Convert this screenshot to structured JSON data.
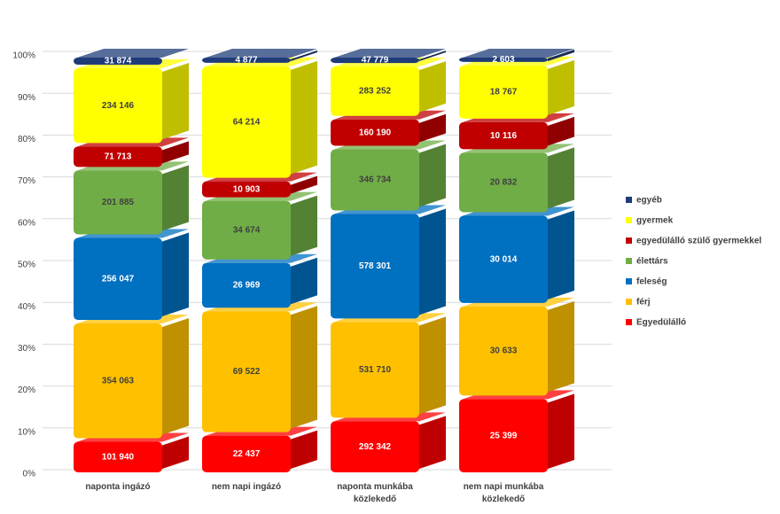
{
  "chart_data": {
    "type": "bar",
    "stacking": "percent",
    "categories": [
      "naponta ingázó",
      "nem napi ingázó",
      "naponta munkába közlekedő",
      "nem napi munkába közlekedő"
    ],
    "series": [
      {
        "name": "Egyedülálló",
        "color": "#ff0000",
        "values": [
          101940,
          22437,
          292342,
          25399
        ],
        "value_labels": [
          "101 940",
          "22 437",
          "292 342",
          "25 399"
        ]
      },
      {
        "name": "férj",
        "color": "#ffc000",
        "values": [
          354063,
          69522,
          531710,
          30633
        ],
        "value_labels": [
          "354 063",
          "69 522",
          "531 710",
          "30 633"
        ]
      },
      {
        "name": "feleség",
        "color": "#0070c0",
        "values": [
          256047,
          26969,
          578301,
          30014
        ],
        "value_labels": [
          "256 047",
          "26 969",
          "578 301",
          "30 014"
        ]
      },
      {
        "name": "élettárs",
        "color": "#70ad47",
        "values": [
          201885,
          34674,
          346734,
          20832
        ],
        "value_labels": [
          "201 885",
          "34 674",
          "346 734",
          "20 832"
        ]
      },
      {
        "name": "egyedülálló szülő gyermekkel",
        "color": "#c00000",
        "values": [
          71713,
          10903,
          160190,
          10116
        ],
        "value_labels": [
          "71 713",
          "10 903",
          "160 190",
          "10 116"
        ]
      },
      {
        "name": "gyermek",
        "color": "#ffff00",
        "values": [
          234146,
          64214,
          283252,
          18767
        ],
        "value_labels": [
          "234 146",
          "64 214",
          "283 252",
          "18 767"
        ]
      },
      {
        "name": "egyéb",
        "color": "#1f3c78",
        "values": [
          31874,
          4877,
          47779,
          2603
        ],
        "value_labels": [
          "31 874",
          "4 877",
          "47 779",
          "2 603"
        ]
      }
    ],
    "ylim": [
      0,
      100
    ],
    "yticks": [
      {
        "value": 0,
        "label": "0%"
      },
      {
        "value": 10,
        "label": "10%"
      },
      {
        "value": 20,
        "label": "20%"
      },
      {
        "value": 30,
        "label": "30%"
      },
      {
        "value": 40,
        "label": "40%"
      },
      {
        "value": 50,
        "label": "50%"
      },
      {
        "value": 60,
        "label": "60%"
      },
      {
        "value": 70,
        "label": "70%"
      },
      {
        "value": 80,
        "label": "80%"
      },
      {
        "value": 90,
        "label": "90%"
      },
      {
        "value": 100,
        "label": "100%"
      }
    ],
    "grid": true,
    "legend": "right"
  }
}
